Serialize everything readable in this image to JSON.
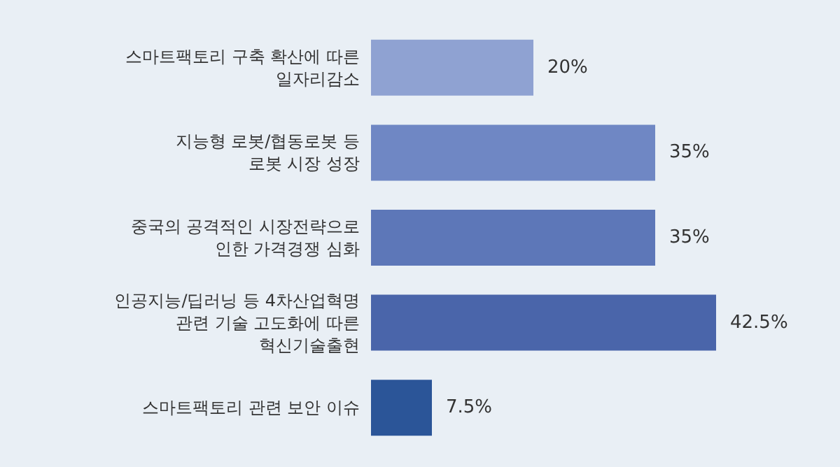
{
  "chart_data": {
    "type": "bar",
    "orientation": "horizontal",
    "categories": [
      "스마트팩토리 구축 확산에 따른\n일자리감소",
      "지능형 로봇/협동로봇 등\n로봇 시장 성장",
      "중국의 공격적인 시장전략으로\n인한 가격경쟁 심화",
      "인공지능/딥러닝 등 4차산업혁명\n관련 기술 고도화에 따른\n혁신기술출현",
      "스마트팩토리 관련 보안 이슈"
    ],
    "values": [
      20,
      35,
      35,
      42.5,
      7.5
    ],
    "colors": [
      "#8fa2d2",
      "#6f87c4",
      "#5d77b8",
      "#4a65aa",
      "#2b5598"
    ],
    "value_labels": [
      "20%",
      "35%",
      "35%",
      "42.5%",
      "7.5%"
    ]
  }
}
